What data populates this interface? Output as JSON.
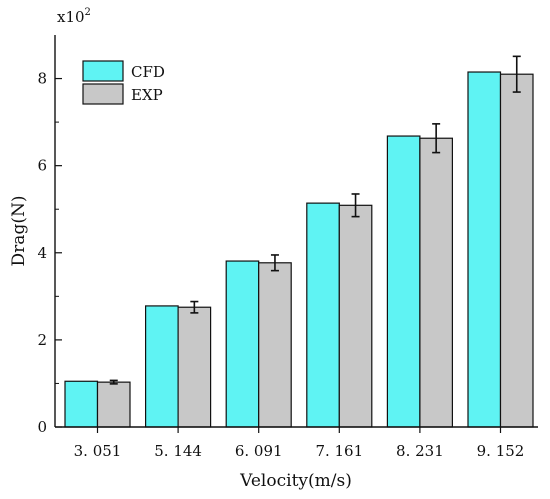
{
  "chart_data": {
    "type": "bar",
    "xlabel": "Velocity(m/s)",
    "ylabel": "Drag(N)",
    "y_multiplier": {
      "base": "x10",
      "exponent": "2"
    },
    "categories": [
      "3. 051",
      "5. 144",
      "6. 091",
      "7. 161",
      "8. 231",
      "9. 152"
    ],
    "series": [
      {
        "name": "CFD",
        "color": "#5ff3f3",
        "values": [
          1.05,
          2.78,
          3.81,
          5.14,
          6.68,
          8.15
        ],
        "errors": [
          0,
          0,
          0,
          0,
          0,
          0
        ]
      },
      {
        "name": "EXP",
        "color": "#c8c8c8",
        "values": [
          1.03,
          2.75,
          3.77,
          5.09,
          6.63,
          8.1
        ],
        "errors": [
          0.04,
          0.13,
          0.18,
          0.26,
          0.33,
          0.41
        ]
      }
    ],
    "ylim": [
      0,
      9
    ],
    "yticks": [
      0,
      2,
      4,
      6,
      8
    ],
    "grid": false,
    "legend_position": "top-left"
  }
}
